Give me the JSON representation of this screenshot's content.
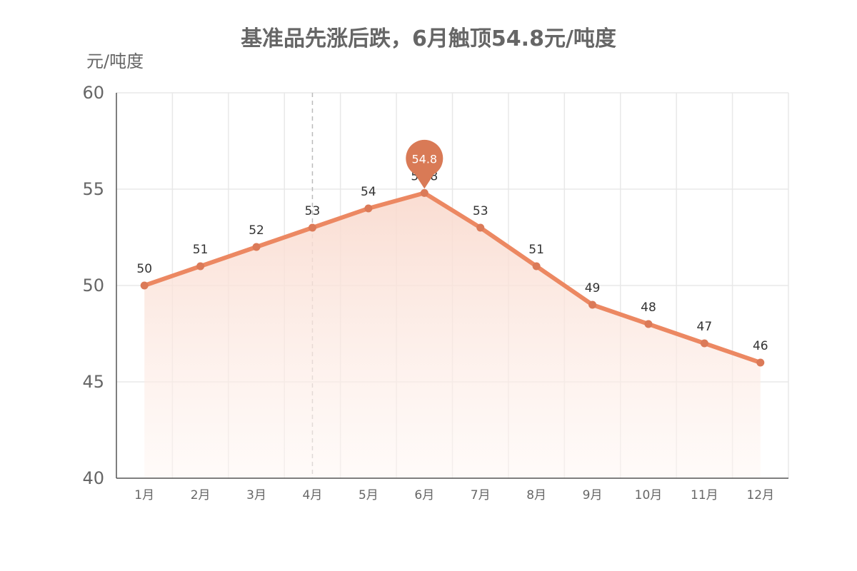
{
  "chart_data": {
    "type": "line",
    "title": "基准品先涨后跌，6月触顶54.8元/吨度",
    "ylabel": "元/吨度",
    "categories": [
      "1月",
      "2月",
      "3月",
      "4月",
      "5月",
      "6月",
      "7月",
      "8月",
      "9月",
      "10月",
      "11月",
      "12月"
    ],
    "series": [
      {
        "values": [
          50,
          51,
          52,
          53,
          54,
          54.8,
          53,
          51,
          49,
          48,
          47,
          46
        ]
      }
    ],
    "ylim": [
      40,
      60
    ],
    "yticks": [
      40,
      45,
      50,
      55,
      60
    ],
    "grid": true,
    "area_fill": true,
    "max_marker": {
      "category": "6月",
      "value": 54.8,
      "label": "54.8"
    },
    "highlight_category": "4月",
    "colors": {
      "line": "#EC8862",
      "point": "#DB7A58",
      "pin": "#D97A56",
      "area_top": "#F9D9CD",
      "grid": "#E8E8E8",
      "axis": "#555555"
    }
  }
}
